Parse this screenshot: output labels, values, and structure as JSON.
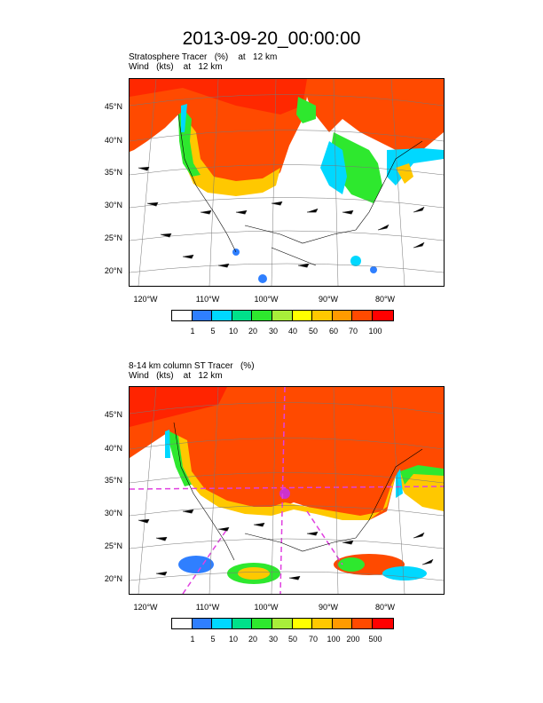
{
  "title": "2013-09-20_00:00:00",
  "panels": [
    {
      "subtitle_line1": "Stratosphere Tracer   (%)    at   12 km",
      "subtitle_line2": "Wind   (kts)    at   12 km",
      "lat_labels": [
        "45°N",
        "40°N",
        "35°N",
        "30°N",
        "25°N",
        "20°N"
      ],
      "lon_labels": [
        "120°W",
        "110°W",
        "100°W",
        "90°W",
        "80°W"
      ],
      "colorbar_labels": [
        "1",
        "5",
        "10",
        "20",
        "30",
        "40",
        "50",
        "60",
        "70",
        "100"
      ]
    },
    {
      "subtitle_line1": "8-14 km column ST Tracer   (%)",
      "subtitle_line2": "Wind   (kts)    at   12 km",
      "lat_labels": [
        "45°N",
        "40°N",
        "35°N",
        "30°N",
        "25°N",
        "20°N"
      ],
      "lon_labels": [
        "120°W",
        "110°W",
        "100°W",
        "90°W",
        "80°W"
      ],
      "colorbar_labels": [
        "1",
        "5",
        "10",
        "20",
        "30",
        "50",
        "70",
        "100",
        "200",
        "500"
      ]
    }
  ],
  "colorbar_colors": [
    "#ffffff",
    "#2f7fff",
    "#00d8ff",
    "#00e08a",
    "#2ee82e",
    "#a8ee3a",
    "#ffff00",
    "#ffc800",
    "#ff9a00",
    "#ff4a00",
    "#ff0000"
  ]
}
